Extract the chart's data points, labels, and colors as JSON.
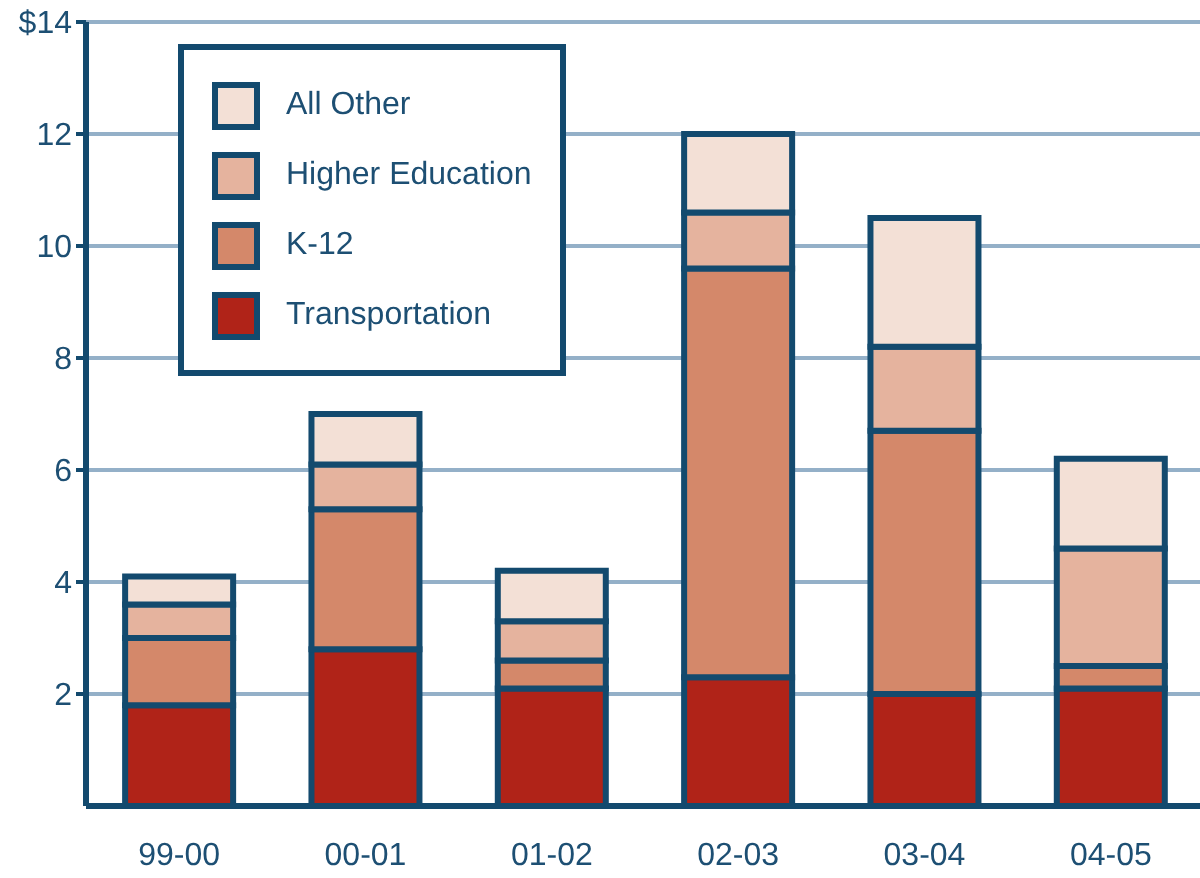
{
  "chart_data": {
    "type": "bar",
    "stacked": true,
    "categories": [
      "99-00",
      "00-01",
      "01-02",
      "02-03",
      "03-04",
      "04-05"
    ],
    "series": [
      {
        "name": "Transportation",
        "color": "#b02318",
        "values": [
          1.8,
          2.8,
          2.1,
          2.3,
          2.0,
          2.1
        ]
      },
      {
        "name": "K-12",
        "color": "#d4886a",
        "values": [
          1.2,
          2.5,
          0.5,
          7.3,
          4.7,
          0.4
        ]
      },
      {
        "name": "Higher Education",
        "color": "#e5b39e",
        "values": [
          0.6,
          0.8,
          0.7,
          1.0,
          1.5,
          2.1
        ]
      },
      {
        "name": "All Other",
        "color": "#f3e0d6",
        "values": [
          0.5,
          0.9,
          0.9,
          1.4,
          2.3,
          1.6
        ]
      }
    ],
    "ylim": [
      0,
      14
    ],
    "yticks": [
      2,
      4,
      6,
      8,
      10,
      12,
      {
        "value": 14,
        "label": "$14"
      }
    ],
    "grid": "y",
    "legend": "top left"
  }
}
